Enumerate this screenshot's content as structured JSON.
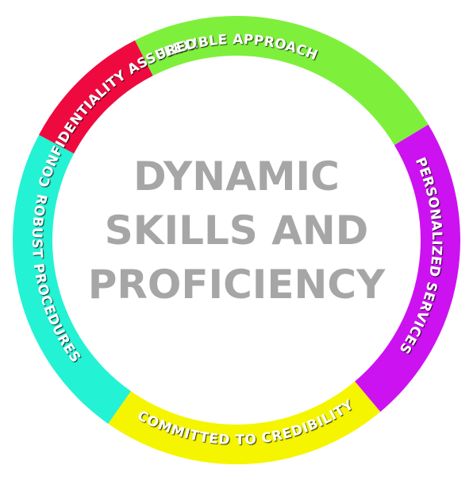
{
  "center": {
    "lines": [
      "DYNAMIC",
      "SKILLS AND",
      "PROFICIENCY"
    ]
  },
  "segments": [
    {
      "label": "FLEXIBLE APPROACH",
      "color": "#7ef03c"
    },
    {
      "label": "PERSONALIZED SERVICES",
      "color": "#cc12f0"
    },
    {
      "label": "COMMITTED TO CREDIBILITY",
      "color": "#f5f500"
    },
    {
      "label": "ROBUST PROCEDURES",
      "color": "#24f2d4"
    },
    {
      "label": "CONFIDENTIALITY ASSURED",
      "color": "#ee0a3f"
    }
  ]
}
